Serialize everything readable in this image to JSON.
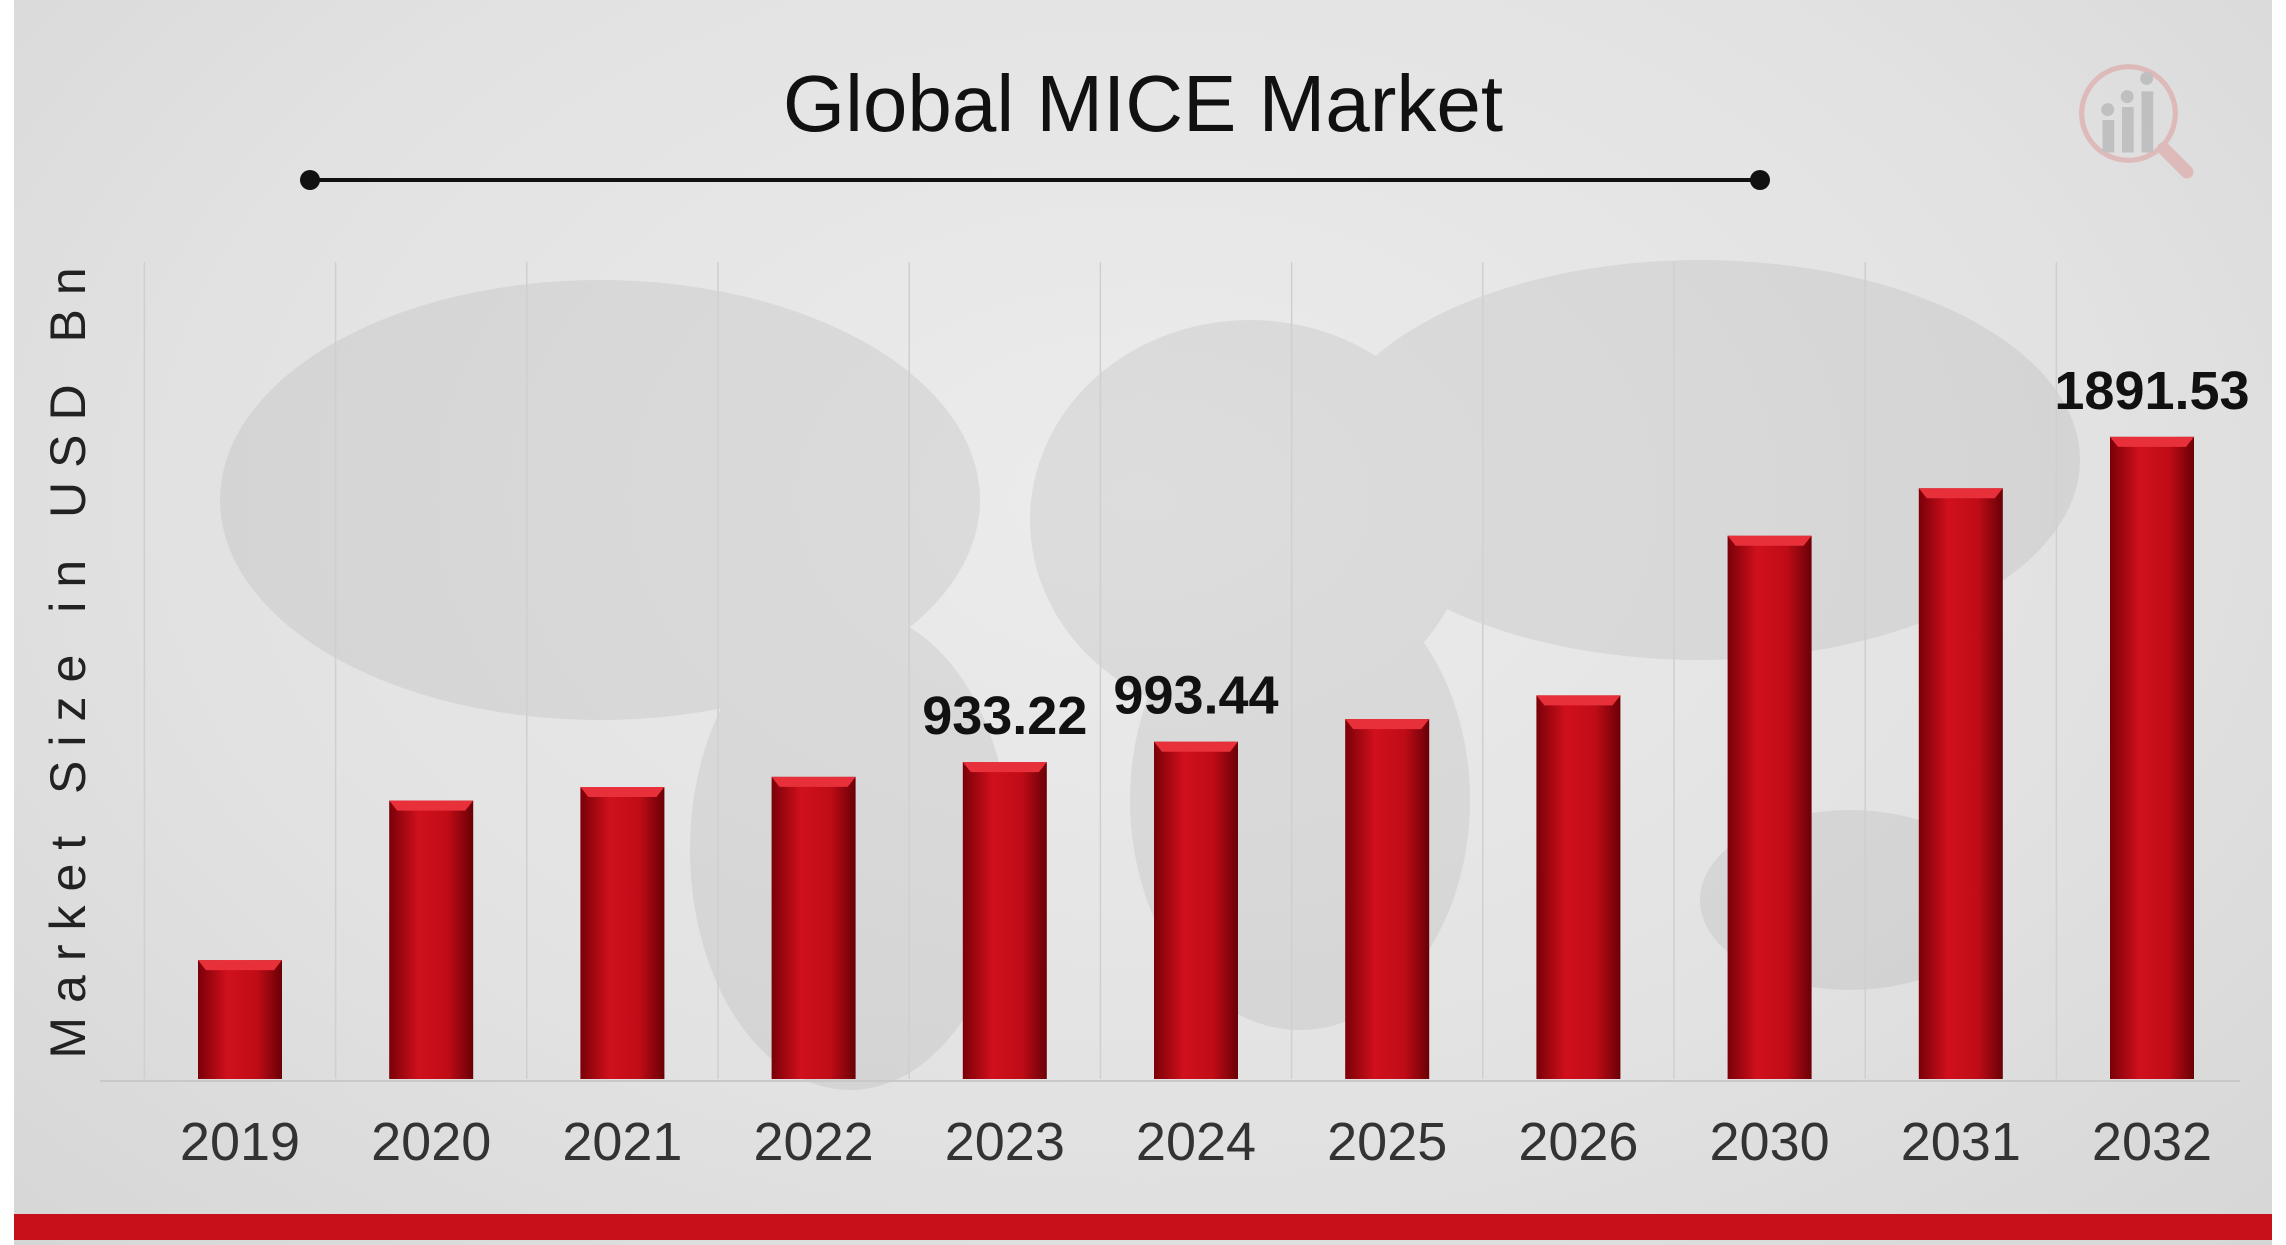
{
  "chart_data": {
    "type": "bar",
    "title": "Global MICE Market",
    "ylabel": "Market Size in USD Bn",
    "xlabel": "",
    "categories": [
      "2019",
      "2020",
      "2021",
      "2022",
      "2023",
      "2024",
      "2025",
      "2026",
      "2030",
      "2031",
      "2032"
    ],
    "values": [
      350,
      820,
      860,
      890,
      933.22,
      993.44,
      1060,
      1130,
      1600,
      1740,
      1891.53
    ],
    "data_labels": {
      "2023": "933.22",
      "2024": "993.44",
      "2032": "1891.53"
    },
    "ylim": [
      0,
      2000
    ],
    "grid": "vertical faint",
    "legend": "none",
    "bar_color": "#c8101a"
  }
}
